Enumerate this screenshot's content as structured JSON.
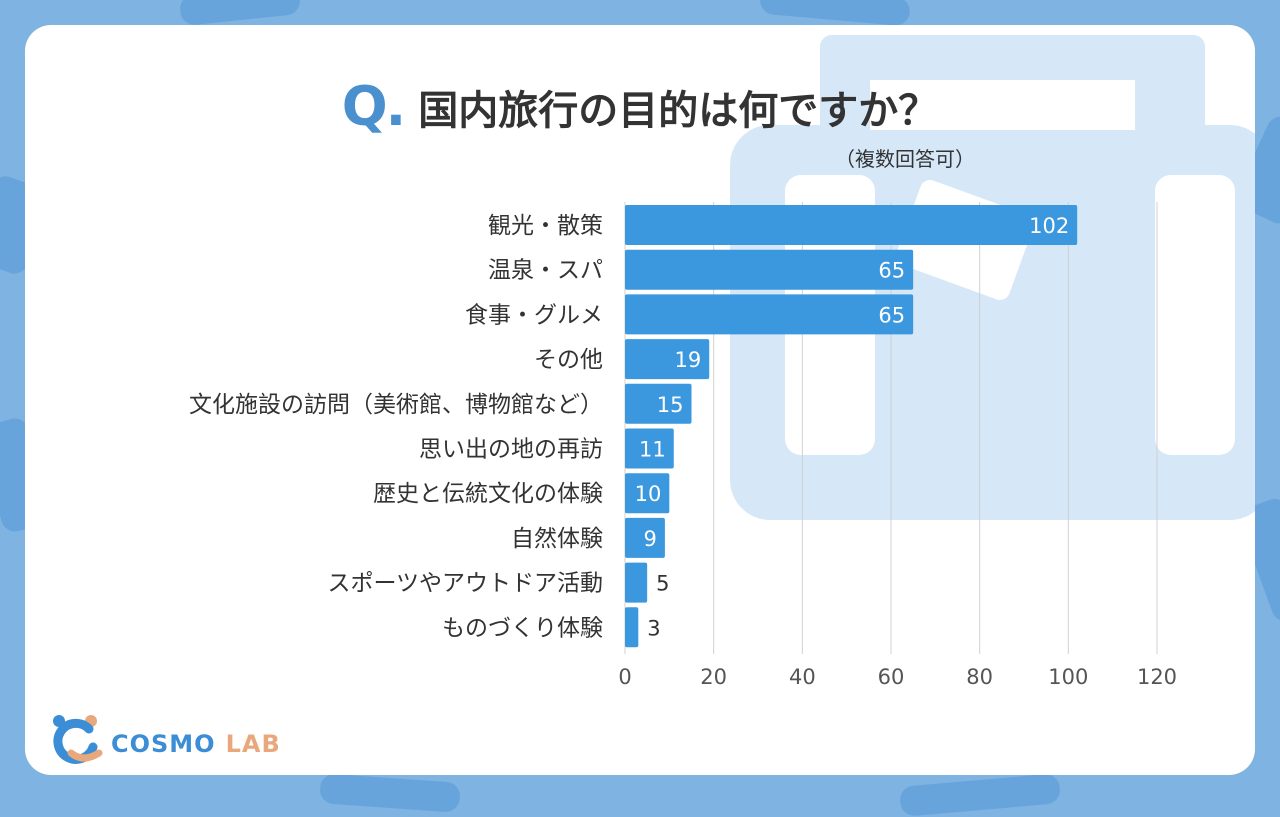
{
  "title": {
    "q_mark": "Q.",
    "text": "国内旅行の目的は何ですか？",
    "note": "（複数回答可）"
  },
  "logo": {
    "cosmo": "COSMO",
    "lab": "LAB"
  },
  "colors": {
    "bar": "#3b97de",
    "background": "#7fb3e2",
    "accent": "#4a90cf",
    "text": "#333333",
    "grid": "#d0d0d0"
  },
  "chart_data": {
    "type": "bar",
    "orientation": "horizontal",
    "categories": [
      "観光・散策",
      "温泉・スパ",
      "食事・グルメ",
      "その他",
      "文化施設の訪問（美術館、博物館など）",
      "思い出の地の再訪",
      "歴史と伝統文化の体験",
      "自然体験",
      "スポーツやアウトドア活動",
      "ものづくり体験"
    ],
    "values": [
      102,
      65,
      65,
      19,
      15,
      11,
      10,
      9,
      5,
      3
    ],
    "xlim": [
      0,
      120
    ],
    "xticks": [
      0,
      20,
      40,
      60,
      80,
      100,
      120
    ],
    "grid": true,
    "data_labels": true
  }
}
